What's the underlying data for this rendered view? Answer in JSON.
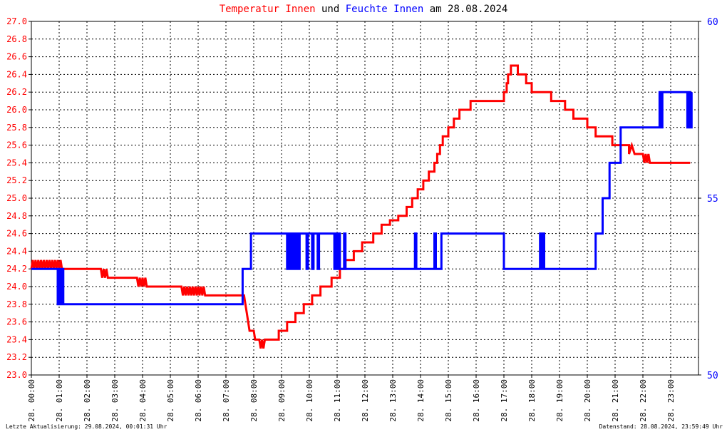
{
  "title": {
    "part1": "Temperatur Innen",
    "part2": "und",
    "part3": "Feuchte Innen",
    "part4": "am 28.08.2024"
  },
  "footer": {
    "left": "Letzte Aktualisierung: 29.08.2024, 00:01:31 Uhr",
    "right": "Datenstand: 28.08.2024, 23:59:49 Uhr"
  },
  "colors": {
    "temperature": "#ff0000",
    "humidity": "#0000ff",
    "grid": "#000000",
    "axis": "#000000"
  },
  "chart_data": {
    "type": "line",
    "title": "Temperatur Innen und Feuchte Innen am 28.08.2024",
    "grid": true,
    "x_ticks": [
      "28. 00:00",
      "28. 01:00",
      "28. 02:00",
      "28. 03:00",
      "28. 04:00",
      "28. 05:00",
      "28. 06:00",
      "28. 07:00",
      "28. 08:00",
      "28. 09:00",
      "28. 10:00",
      "28. 11:00",
      "28. 12:00",
      "28. 13:00",
      "28. 14:00",
      "28. 15:00",
      "28. 16:00",
      "28. 17:00",
      "28. 18:00",
      "28. 19:00",
      "28. 20:00",
      "28. 21:00",
      "28. 22:00",
      "28. 23:00"
    ],
    "x_range_hours": [
      0,
      24
    ],
    "y_left": {
      "label": "",
      "range": [
        23.0,
        27.0
      ],
      "ticks": [
        "23.0",
        "23.2",
        "23.4",
        "23.6",
        "23.8",
        "24.0",
        "24.2",
        "24.4",
        "24.6",
        "24.8",
        "25.0",
        "25.2",
        "25.4",
        "25.6",
        "25.8",
        "26.0",
        "26.2",
        "26.4",
        "26.6",
        "26.8",
        "27.0"
      ]
    },
    "y_right": {
      "label": "",
      "range": [
        50,
        60
      ],
      "ticks": [
        "50",
        "55",
        "60"
      ]
    },
    "series": [
      {
        "name": "Temperatur Innen",
        "axis": "left",
        "points": [
          [
            0.0,
            24.2
          ],
          [
            0.05,
            24.3
          ],
          [
            0.1,
            24.2
          ],
          [
            0.15,
            24.3
          ],
          [
            0.2,
            24.2
          ],
          [
            0.25,
            24.3
          ],
          [
            0.3,
            24.2
          ],
          [
            0.35,
            24.3
          ],
          [
            0.4,
            24.2
          ],
          [
            0.45,
            24.3
          ],
          [
            0.5,
            24.2
          ],
          [
            0.55,
            24.3
          ],
          [
            0.6,
            24.2
          ],
          [
            0.65,
            24.3
          ],
          [
            0.7,
            24.2
          ],
          [
            0.75,
            24.3
          ],
          [
            0.8,
            24.2
          ],
          [
            0.85,
            24.3
          ],
          [
            0.9,
            24.2
          ],
          [
            0.95,
            24.3
          ],
          [
            1.0,
            24.2
          ],
          [
            1.05,
            24.3
          ],
          [
            1.1,
            24.2
          ],
          [
            1.2,
            24.2
          ],
          [
            2.5,
            24.2
          ],
          [
            2.55,
            24.1
          ],
          [
            2.6,
            24.2
          ],
          [
            2.65,
            24.1
          ],
          [
            2.7,
            24.2
          ],
          [
            2.75,
            24.1
          ],
          [
            2.8,
            24.1
          ],
          [
            3.8,
            24.1
          ],
          [
            3.85,
            24.0
          ],
          [
            3.9,
            24.1
          ],
          [
            3.95,
            24.0
          ],
          [
            4.0,
            24.1
          ],
          [
            4.05,
            24.0
          ],
          [
            4.1,
            24.1
          ],
          [
            4.15,
            24.0
          ],
          [
            4.2,
            24.0
          ],
          [
            5.4,
            24.0
          ],
          [
            5.45,
            23.9
          ],
          [
            5.5,
            24.0
          ],
          [
            5.55,
            23.9
          ],
          [
            5.6,
            24.0
          ],
          [
            5.65,
            23.9
          ],
          [
            5.7,
            24.0
          ],
          [
            5.75,
            23.9
          ],
          [
            5.8,
            24.0
          ],
          [
            5.85,
            23.9
          ],
          [
            5.9,
            24.0
          ],
          [
            5.95,
            23.9
          ],
          [
            6.0,
            24.0
          ],
          [
            6.05,
            23.9
          ],
          [
            6.1,
            24.0
          ],
          [
            6.15,
            23.9
          ],
          [
            6.2,
            24.0
          ],
          [
            6.25,
            23.9
          ],
          [
            6.3,
            23.9
          ],
          [
            7.65,
            23.9
          ],
          [
            7.7,
            23.8
          ],
          [
            7.75,
            23.7
          ],
          [
            7.8,
            23.6
          ],
          [
            7.85,
            23.5
          ],
          [
            8.0,
            23.5
          ],
          [
            8.05,
            23.4
          ],
          [
            8.2,
            23.4
          ],
          [
            8.25,
            23.3
          ],
          [
            8.3,
            23.4
          ],
          [
            8.35,
            23.3
          ],
          [
            8.4,
            23.4
          ],
          [
            8.9,
            23.4
          ],
          [
            8.9,
            23.5
          ],
          [
            9.2,
            23.5
          ],
          [
            9.2,
            23.6
          ],
          [
            9.5,
            23.6
          ],
          [
            9.5,
            23.7
          ],
          [
            9.8,
            23.7
          ],
          [
            9.8,
            23.8
          ],
          [
            10.1,
            23.8
          ],
          [
            10.1,
            23.9
          ],
          [
            10.4,
            23.9
          ],
          [
            10.4,
            24.0
          ],
          [
            10.8,
            24.0
          ],
          [
            10.8,
            24.1
          ],
          [
            11.1,
            24.1
          ],
          [
            11.1,
            24.2
          ],
          [
            11.3,
            24.2
          ],
          [
            11.3,
            24.3
          ],
          [
            11.6,
            24.3
          ],
          [
            11.6,
            24.4
          ],
          [
            11.9,
            24.4
          ],
          [
            11.9,
            24.5
          ],
          [
            12.3,
            24.5
          ],
          [
            12.3,
            24.6
          ],
          [
            12.6,
            24.6
          ],
          [
            12.6,
            24.7
          ],
          [
            12.9,
            24.7
          ],
          [
            12.9,
            24.75
          ],
          [
            13.2,
            24.75
          ],
          [
            13.2,
            24.8
          ],
          [
            13.5,
            24.8
          ],
          [
            13.5,
            24.9
          ],
          [
            13.7,
            24.9
          ],
          [
            13.7,
            25.0
          ],
          [
            13.9,
            25.0
          ],
          [
            13.9,
            25.1
          ],
          [
            14.1,
            25.1
          ],
          [
            14.1,
            25.2
          ],
          [
            14.3,
            25.2
          ],
          [
            14.3,
            25.3
          ],
          [
            14.5,
            25.3
          ],
          [
            14.5,
            25.4
          ],
          [
            14.6,
            25.4
          ],
          [
            14.6,
            25.5
          ],
          [
            14.7,
            25.5
          ],
          [
            14.7,
            25.6
          ],
          [
            14.8,
            25.6
          ],
          [
            14.8,
            25.7
          ],
          [
            15.0,
            25.7
          ],
          [
            15.0,
            25.8
          ],
          [
            15.2,
            25.8
          ],
          [
            15.2,
            25.9
          ],
          [
            15.4,
            25.9
          ],
          [
            15.4,
            26.0
          ],
          [
            15.8,
            26.0
          ],
          [
            15.8,
            26.1
          ],
          [
            17.0,
            26.1
          ],
          [
            17.0,
            26.2
          ],
          [
            17.1,
            26.2
          ],
          [
            17.1,
            26.3
          ],
          [
            17.15,
            26.3
          ],
          [
            17.15,
            26.4
          ],
          [
            17.25,
            26.4
          ],
          [
            17.25,
            26.5
          ],
          [
            17.5,
            26.5
          ],
          [
            17.5,
            26.4
          ],
          [
            17.8,
            26.4
          ],
          [
            17.8,
            26.3
          ],
          [
            18.0,
            26.3
          ],
          [
            18.0,
            26.2
          ],
          [
            18.7,
            26.2
          ],
          [
            18.7,
            26.1
          ],
          [
            19.2,
            26.1
          ],
          [
            19.2,
            26.0
          ],
          [
            19.5,
            26.0
          ],
          [
            19.5,
            25.9
          ],
          [
            20.0,
            25.9
          ],
          [
            20.0,
            25.8
          ],
          [
            20.3,
            25.8
          ],
          [
            20.3,
            25.7
          ],
          [
            20.9,
            25.7
          ],
          [
            20.9,
            25.6
          ],
          [
            21.5,
            25.6
          ],
          [
            21.5,
            25.5
          ],
          [
            21.6,
            25.6
          ],
          [
            21.7,
            25.5
          ],
          [
            22.0,
            25.5
          ],
          [
            22.05,
            25.4
          ],
          [
            22.1,
            25.5
          ],
          [
            22.15,
            25.4
          ],
          [
            22.2,
            25.5
          ],
          [
            22.25,
            25.4
          ],
          [
            23.7,
            25.4
          ]
        ]
      },
      {
        "name": "Feuchte Innen",
        "axis": "right",
        "points": [
          [
            0.0,
            53.0
          ],
          [
            0.95,
            53.0
          ],
          [
            0.95,
            52.0
          ],
          [
            1.0,
            52.0
          ],
          [
            1.0,
            53.0
          ],
          [
            1.05,
            53.0
          ],
          [
            1.05,
            52.0
          ],
          [
            1.1,
            52.0
          ],
          [
            1.1,
            53.0
          ],
          [
            1.15,
            53.0
          ],
          [
            1.15,
            52.0
          ],
          [
            7.6,
            52.0
          ],
          [
            7.6,
            53.0
          ],
          [
            7.9,
            53.0
          ],
          [
            7.9,
            54.0
          ],
          [
            9.2,
            54.0
          ],
          [
            9.2,
            53.0
          ],
          [
            9.25,
            53.0
          ],
          [
            9.25,
            54.0
          ],
          [
            9.3,
            54.0
          ],
          [
            9.3,
            53.0
          ],
          [
            9.35,
            53.0
          ],
          [
            9.35,
            54.0
          ],
          [
            9.4,
            54.0
          ],
          [
            9.4,
            53.0
          ],
          [
            9.45,
            53.0
          ],
          [
            9.45,
            54.0
          ],
          [
            9.5,
            54.0
          ],
          [
            9.5,
            53.0
          ],
          [
            9.55,
            53.0
          ],
          [
            9.55,
            54.0
          ],
          [
            9.6,
            54.0
          ],
          [
            9.6,
            53.0
          ],
          [
            9.65,
            53.0
          ],
          [
            9.65,
            54.0
          ],
          [
            9.9,
            54.0
          ],
          [
            9.9,
            53.0
          ],
          [
            9.95,
            53.0
          ],
          [
            9.95,
            54.0
          ],
          [
            10.1,
            54.0
          ],
          [
            10.1,
            53.0
          ],
          [
            10.15,
            53.0
          ],
          [
            10.15,
            54.0
          ],
          [
            10.3,
            54.0
          ],
          [
            10.3,
            53.0
          ],
          [
            10.35,
            53.0
          ],
          [
            10.35,
            54.0
          ],
          [
            10.9,
            54.0
          ],
          [
            10.9,
            53.0
          ],
          [
            10.95,
            53.0
          ],
          [
            10.95,
            54.0
          ],
          [
            11.0,
            54.0
          ],
          [
            11.0,
            53.0
          ],
          [
            11.05,
            53.0
          ],
          [
            11.05,
            54.0
          ],
          [
            11.1,
            54.0
          ],
          [
            11.1,
            53.0
          ],
          [
            11.25,
            53.0
          ],
          [
            11.25,
            54.0
          ],
          [
            11.3,
            54.0
          ],
          [
            11.3,
            53.0
          ],
          [
            13.8,
            53.0
          ],
          [
            13.8,
            54.0
          ],
          [
            13.85,
            54.0
          ],
          [
            13.85,
            53.0
          ],
          [
            14.5,
            53.0
          ],
          [
            14.5,
            54.0
          ],
          [
            14.55,
            54.0
          ],
          [
            14.55,
            53.0
          ],
          [
            14.75,
            53.0
          ],
          [
            14.75,
            54.0
          ],
          [
            17.0,
            54.0
          ],
          [
            17.0,
            53.0
          ],
          [
            18.3,
            53.0
          ],
          [
            18.3,
            54.0
          ],
          [
            18.35,
            54.0
          ],
          [
            18.35,
            53.0
          ],
          [
            18.4,
            53.0
          ],
          [
            18.4,
            54.0
          ],
          [
            18.45,
            54.0
          ],
          [
            18.45,
            53.0
          ],
          [
            20.3,
            53.0
          ],
          [
            20.3,
            54.0
          ],
          [
            20.55,
            54.0
          ],
          [
            20.55,
            55.0
          ],
          [
            20.8,
            55.0
          ],
          [
            20.8,
            56.0
          ],
          [
            21.2,
            56.0
          ],
          [
            21.2,
            57.0
          ],
          [
            22.6,
            57.0
          ],
          [
            22.6,
            58.0
          ],
          [
            22.65,
            58.0
          ],
          [
            22.65,
            57.0
          ],
          [
            22.7,
            57.0
          ],
          [
            22.7,
            58.0
          ],
          [
            23.6,
            58.0
          ],
          [
            23.6,
            57.0
          ],
          [
            23.65,
            57.0
          ],
          [
            23.65,
            58.0
          ],
          [
            23.7,
            58.0
          ],
          [
            23.7,
            57.0
          ],
          [
            23.75,
            57.0
          ],
          [
            23.75,
            58.0
          ]
        ]
      }
    ]
  }
}
